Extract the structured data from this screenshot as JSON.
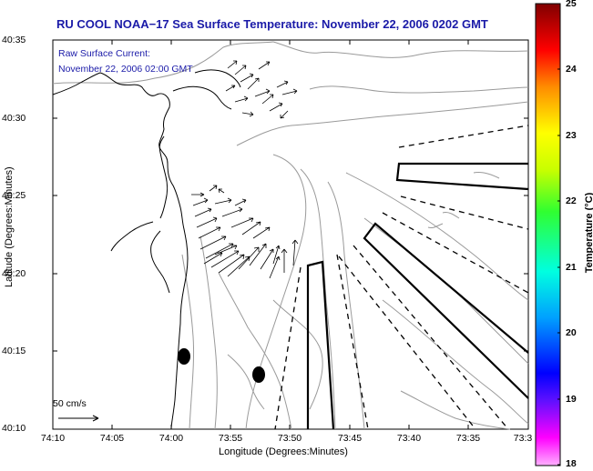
{
  "title": "RU COOL  NOAA−17  Sea Surface Temperature:  November 22, 2006 0202 GMT",
  "annotation": {
    "line1": "Raw Surface Current:",
    "line2": "November 22, 2006 02:00 GMT"
  },
  "y_axis": {
    "label": "Latitude (Degrees:Minutes)",
    "ticks": [
      "40:35",
      "40:30",
      "40:25",
      "40:20",
      "40:15",
      "40:10"
    ]
  },
  "x_axis": {
    "label": "Longitude (Degrees:Minutes)",
    "ticks": [
      "74:10",
      "74:05",
      "74:00",
      "73:55",
      "73:50",
      "73:45",
      "73:40",
      "73:35",
      "73:3"
    ]
  },
  "scale_arrow": {
    "label": "50 cm/s"
  },
  "colorbar": {
    "label": "Temperature (°C)",
    "ticks": [
      "25",
      "24",
      "23",
      "22",
      "21",
      "20",
      "19",
      "18"
    ],
    "range": [
      18,
      25
    ],
    "colors": [
      "#ff00ff",
      "#0000ff",
      "#00c0ff",
      "#00ffb0",
      "#60ff00",
      "#ffff00",
      "#ff9000",
      "#ff0000",
      "#800000"
    ]
  },
  "colors": {
    "title": "#1a1aa8",
    "contour": "#9a9a9a",
    "coast": "#000000"
  }
}
